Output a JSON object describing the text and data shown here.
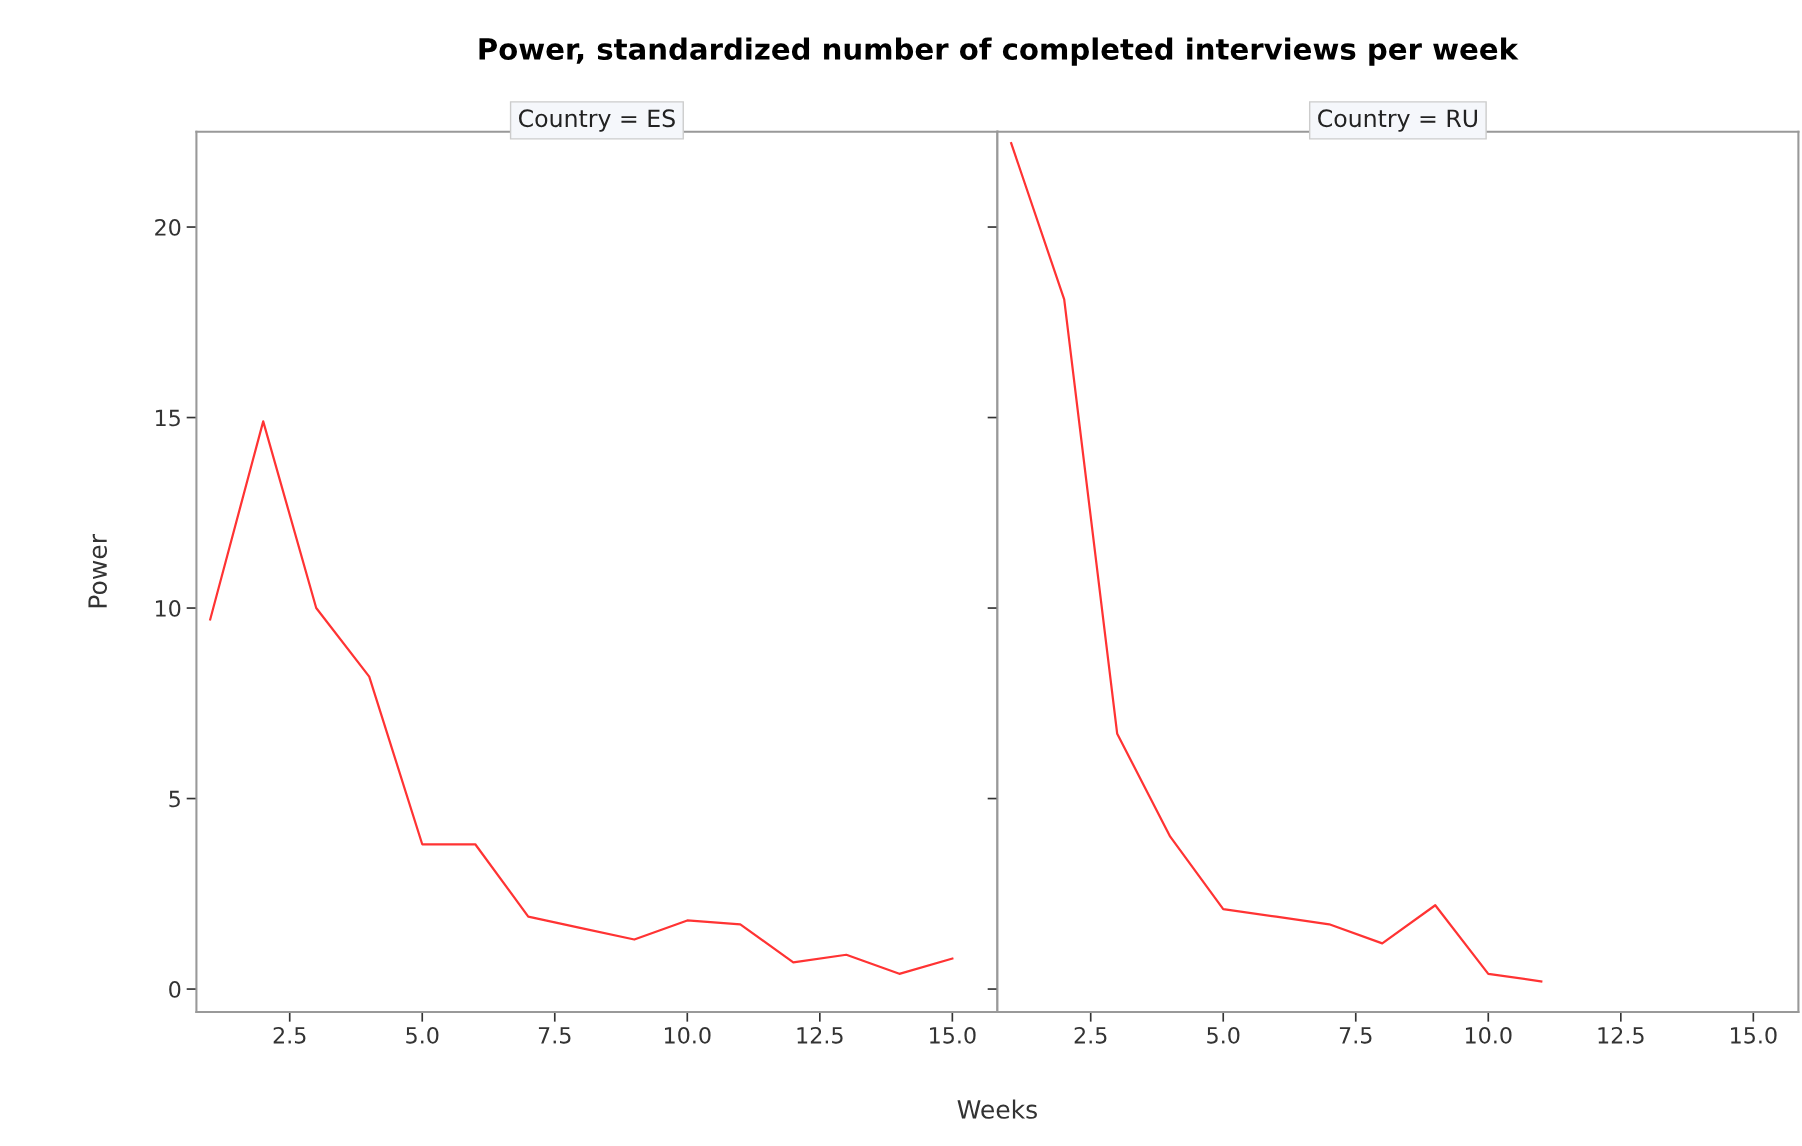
{
  "chart_data": [
    {
      "type": "line",
      "title": "Power, standardized number of completed interviews per week",
      "subtitle": "Country = ES",
      "xlabel": "Weeks",
      "ylabel": "Power",
      "x": [
        1,
        2,
        3,
        4,
        5,
        6,
        7,
        8,
        9,
        10,
        11,
        12,
        13,
        14,
        15
      ],
      "series": [
        {
          "color": "#ff3333",
          "values": [
            9.7,
            14.9,
            10.0,
            8.2,
            3.8,
            3.8,
            1.9,
            1.6,
            1.3,
            1.8,
            1.7,
            0.7,
            0.9,
            0.4,
            0.8
          ]
        }
      ],
      "xlim": [
        0.74,
        15.85
      ],
      "ylim": [
        -0.6,
        22.5
      ],
      "xticks": [
        2.5,
        {
          "value": 5,
          "label": "5.0"
        },
        7.5,
        {
          "value": 10,
          "label": "10.0"
        },
        12.5,
        {
          "value": 15,
          "label": "15.0"
        }
      ],
      "yticks": [
        0,
        5,
        10,
        15,
        20
      ],
      "grid": false,
      "legend": false
    },
    {
      "type": "line",
      "subtitle": "Country = RU",
      "x": [
        1,
        2,
        3,
        4,
        5,
        6,
        7,
        8,
        9,
        10,
        11
      ],
      "series": [
        {
          "color": "#ff3333",
          "values": [
            22.2,
            18.1,
            6.7,
            4.0,
            2.1,
            1.9,
            1.7,
            1.2,
            2.2,
            0.4,
            0.2
          ]
        }
      ],
      "xlim": [
        0.74,
        15.85
      ],
      "ylim": [
        -0.6,
        22.5
      ],
      "xticks": [
        2.5,
        {
          "value": 5,
          "label": "5.0"
        },
        7.5,
        {
          "value": 10,
          "label": "10.0"
        },
        12.5,
        {
          "value": 15,
          "label": "15.0"
        }
      ],
      "yticks": [
        0,
        5,
        10,
        15,
        20
      ],
      "tick_labels": "x",
      "grid": false,
      "legend": false
    }
  ]
}
